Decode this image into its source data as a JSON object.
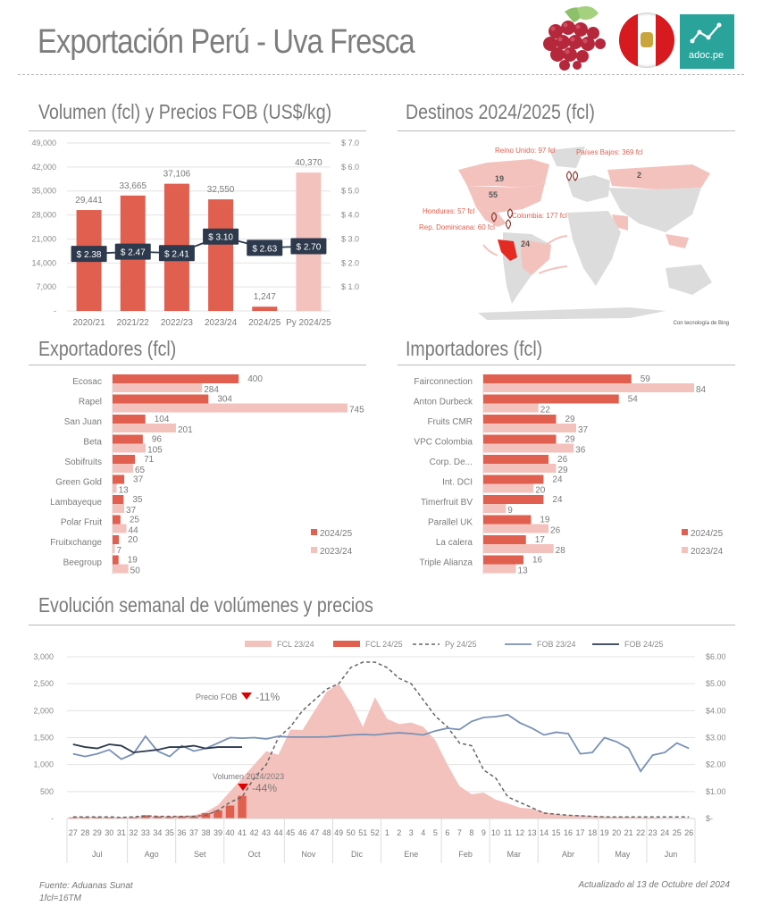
{
  "header": {
    "title": "Exportación Perú - Uva Fresca",
    "logos": [
      "grapes-image",
      "peru-flag",
      "adoc-pe-logo"
    ],
    "adoc_label": "adoc.pe"
  },
  "colors": {
    "accent_red": "#e15f4f",
    "light_pink": "#f4c2bd",
    "navy": "#2d3a4d",
    "steel_blue": "#7891b5",
    "map_gray": "#dcdcdc",
    "peru_red": "#e52a23"
  },
  "sections": {
    "volume_price": "Volumen (fcl) y Precios FOB (US$/kg)",
    "destinations": "Destinos 2024/2025 (fcl)",
    "exporters": "Exportadores (fcl)",
    "importers": "Importadores (fcl)",
    "weekly": "Evolución semanal de volúmenes y precios"
  },
  "map": {
    "labels": [
      {
        "text": "Reino Unido: 97 fcl"
      },
      {
        "text": "Países Bajos: 369 fcl"
      },
      {
        "text": "Honduras: 57 fcl"
      },
      {
        "text": "Colombia: 177 fcl"
      },
      {
        "text": "Rep. Dominicana: 60 fcl"
      }
    ],
    "region_values": [
      {
        "region": "Canada",
        "value": "19"
      },
      {
        "region": "USA",
        "value": "55"
      },
      {
        "region": "Russia",
        "value": "2"
      },
      {
        "region": "Brazil",
        "value": "24"
      }
    ],
    "credit": "Con tecnología de Bing"
  },
  "chart_data": [
    {
      "id": "volume_price",
      "type": "bar",
      "title": "Volumen (fcl) y Precios FOB (US$/kg)",
      "categories": [
        "2020/21",
        "2021/22",
        "2022/23",
        "2023/24",
        "2024/25",
        "Py 2024/25"
      ],
      "series": [
        {
          "name": "Volumen (fcl)",
          "type": "bar",
          "values": [
            29441,
            33665,
            37106,
            32550,
            1247,
            40370
          ],
          "value_labels": [
            "29,441",
            "33,665",
            "37,106",
            "32,550",
            "1,247",
            "40,370"
          ]
        },
        {
          "name": "Precio FOB (US$/kg)",
          "type": "line",
          "axis": "right",
          "values": [
            2.38,
            2.47,
            2.41,
            3.1,
            2.63,
            2.7
          ],
          "value_labels": [
            "$ 2.38",
            "$ 2.47",
            "$ 2.41",
            "$ 3.10",
            "$ 2.63",
            "$ 2.70"
          ]
        }
      ],
      "y_left": {
        "ticks": [
          "-",
          "7,000",
          "14,000",
          "21,000",
          "28,000",
          "35,000",
          "42,000",
          "49,000"
        ],
        "range": [
          0,
          49000
        ]
      },
      "y_right": {
        "ticks": [
          "",
          "$ 1.0",
          "$ 2.0",
          "$ 3.0",
          "$ 4.0",
          "$ 5.0",
          "$ 6.0",
          "$ 7.0"
        ],
        "range": [
          0,
          7
        ]
      },
      "grid": true
    },
    {
      "id": "exporters",
      "type": "bar",
      "orientation": "horizontal",
      "title": "Exportadores (fcl)",
      "categories": [
        "Ecosac",
        "Rapel",
        "San Juan",
        "Beta",
        "Sobifruits",
        "Green Gold",
        "Lambayeque",
        "Polar Fruit",
        "Fruitxchange",
        "Beegroup"
      ],
      "series": [
        {
          "name": "2024/25",
          "values": [
            400,
            304,
            104,
            96,
            71,
            37,
            35,
            25,
            20,
            19
          ]
        },
        {
          "name": "2023/24",
          "values": [
            284,
            745,
            201,
            105,
            65,
            13,
            37,
            44,
            7,
            50
          ]
        }
      ],
      "legend": "bottom-right"
    },
    {
      "id": "importers",
      "type": "bar",
      "orientation": "horizontal",
      "title": "Importadores (fcl)",
      "categories": [
        "Fairconnection",
        "Anton Durbeck",
        "Fruits CMR",
        "VPC Colombia",
        "Corp. De...",
        "Int. DCI",
        "Timerfruit BV",
        "Parallel UK",
        "La calera",
        "Triple Alianza"
      ],
      "series": [
        {
          "name": "2024/25",
          "values": [
            59,
            54,
            29,
            29,
            26,
            24,
            24,
            19,
            17,
            16
          ]
        },
        {
          "name": "2023/24",
          "values": [
            84,
            22,
            37,
            36,
            29,
            20,
            9,
            26,
            28,
            13
          ]
        }
      ],
      "legend": "bottom-right"
    },
    {
      "id": "weekly",
      "type": "area",
      "title": "Evolución semanal de volúmenes y precios",
      "weeks": [
        "27",
        "28",
        "29",
        "30",
        "31",
        "32",
        "33",
        "34",
        "35",
        "36",
        "37",
        "38",
        "39",
        "40",
        "41",
        "42",
        "43",
        "44",
        "45",
        "46",
        "47",
        "48",
        "49",
        "50",
        "51",
        "52",
        "1",
        "2",
        "3",
        "4",
        "5",
        "6",
        "7",
        "8",
        "9",
        "10",
        "11",
        "12",
        "13",
        "14",
        "15",
        "16",
        "17",
        "18",
        "19",
        "20",
        "21",
        "22",
        "23",
        "24",
        "25",
        "26"
      ],
      "months": [
        {
          "label": "Jul",
          "weeks": 5
        },
        {
          "label": "Ago",
          "weeks": 4
        },
        {
          "label": "Set",
          "weeks": 4
        },
        {
          "label": "Oct",
          "weeks": 5
        },
        {
          "label": "Nov",
          "weeks": 4
        },
        {
          "label": "Dic",
          "weeks": 4
        },
        {
          "label": "Ene",
          "weeks": 5
        },
        {
          "label": "Feb",
          "weeks": 4
        },
        {
          "label": "Mar",
          "weeks": 4
        },
        {
          "label": "Abr",
          "weeks": 5
        },
        {
          "label": "May",
          "weeks": 4
        },
        {
          "label": "Jun",
          "weeks": 4
        }
      ],
      "series": [
        {
          "name": "FCL 23/24",
          "type": "area",
          "axis": "left",
          "values": [
            30,
            30,
            30,
            25,
            20,
            30,
            50,
            40,
            40,
            50,
            60,
            120,
            250,
            500,
            750,
            1000,
            1250,
            1180,
            1650,
            1640,
            2000,
            2350,
            2500,
            2150,
            1700,
            2250,
            1850,
            1750,
            1780,
            1700,
            1450,
            1000,
            600,
            450,
            480,
            350,
            280,
            200,
            180,
            120,
            80,
            60,
            60,
            50,
            40,
            30,
            30,
            20,
            20,
            10,
            10,
            10
          ]
        },
        {
          "name": "FCL 24/25",
          "type": "bar",
          "axis": "left",
          "values": [
            20,
            20,
            20,
            20,
            15,
            20,
            60,
            40,
            30,
            40,
            40,
            100,
            150,
            240,
            420
          ]
        },
        {
          "name": "Py 24/25",
          "type": "dashed-line",
          "axis": "left",
          "values": [
            30,
            30,
            30,
            30,
            20,
            30,
            50,
            40,
            40,
            40,
            40,
            60,
            150,
            300,
            400,
            750,
            1000,
            1500,
            1700,
            2000,
            2200,
            2400,
            2500,
            2800,
            2900,
            2900,
            2800,
            2600,
            2500,
            2200,
            1900,
            1700,
            1400,
            1350,
            900,
            750,
            400,
            300,
            200,
            100,
            80,
            60,
            50,
            40,
            30,
            30,
            30,
            30,
            30,
            30,
            30,
            30
          ]
        },
        {
          "name": "FOB 23/24",
          "type": "line",
          "axis": "right",
          "values": [
            2.4,
            2.3,
            2.4,
            2.55,
            2.2,
            2.4,
            3.05,
            2.5,
            2.3,
            2.7,
            2.5,
            2.6,
            2.8,
            3.0,
            2.98,
            3.0,
            2.95,
            3.05,
            3.02,
            3.02,
            3.02,
            3.03,
            3.06,
            3.1,
            3.12,
            3.1,
            3.15,
            3.18,
            3.15,
            3.1,
            3.25,
            3.35,
            3.3,
            3.6,
            3.75,
            3.78,
            3.85,
            3.55,
            3.35,
            3.1,
            3.2,
            3.15,
            2.4,
            2.45,
            3.0,
            2.85,
            2.6,
            1.75,
            2.35,
            2.45,
            2.8,
            2.6
          ]
        },
        {
          "name": "FOB 24/25",
          "type": "line",
          "axis": "right",
          "values": [
            2.75,
            2.65,
            2.6,
            2.75,
            2.7,
            2.45,
            2.5,
            2.55,
            2.65,
            2.65,
            2.7,
            2.6,
            2.65,
            2.65,
            2.65
          ]
        }
      ],
      "y_left": {
        "ticks": [
          "-",
          "500",
          "1,000",
          "1,500",
          "2,000",
          "2,500",
          "3,000"
        ],
        "range": [
          0,
          3000
        ]
      },
      "y_right": {
        "ticks": [
          "$-",
          "$1.00",
          "$2.00",
          "$3.00",
          "$4.00",
          "$5.00",
          "$6.00"
        ],
        "range": [
          0,
          6
        ]
      },
      "annotations": [
        {
          "label": "Precio FOB",
          "value": "-11%",
          "direction": "down"
        },
        {
          "label": "Volumen 2024/2023",
          "value": "-44%",
          "direction": "down"
        }
      ],
      "legend": "top"
    }
  ],
  "footer": {
    "source": "Fuente: Aduanas Sunat",
    "note": "1fcl=16TM",
    "updated": "Actualizado al 13 de Octubre del 2024"
  }
}
